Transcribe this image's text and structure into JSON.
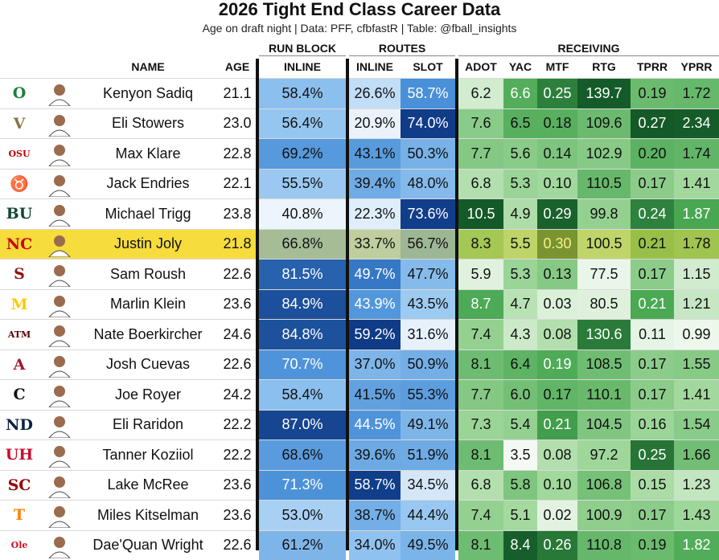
{
  "title": "2026 Tight End Class Career Data",
  "subtitle": "Age on draft night | Data: PFF, cfbfastR | Table: @fball_insights",
  "group_headers": {
    "run_block": "RUN BLOCK",
    "routes": "ROUTES",
    "receiving": "RECEIVING"
  },
  "columns": {
    "name": "NAME",
    "age": "AGE",
    "inline_rb": "INLINE",
    "inline_rt": "INLINE",
    "slot": "SLOT",
    "adot": "ADOT",
    "yac": "YAC",
    "mtf": "MTF",
    "rtg": "RTG",
    "tprr": "TPRR",
    "yprr": "YPRR"
  },
  "chart_data": {
    "type": "table",
    "title": "2026 Tight End Class Career Data",
    "highlighted_row": "Justin Joly",
    "rows": [
      {
        "school": "Oregon",
        "logo_text": "O",
        "logo_color": "#1b7f3c",
        "name": "Kenyon Sadiq",
        "age": "21.1",
        "inline_rb": "58.4%",
        "inline_rt": "26.6%",
        "slot": "58.7%",
        "adot": "6.2",
        "yac": "6.6",
        "mtf": "0.25",
        "rtg": "139.7",
        "tprr": "0.19",
        "yprr": "1.72"
      },
      {
        "school": "Vanderbilt",
        "logo_text": "V",
        "logo_color": "#8b7448",
        "name": "Eli Stowers",
        "age": "23.0",
        "inline_rb": "56.4%",
        "inline_rt": "20.9%",
        "slot": "74.0%",
        "adot": "7.6",
        "yac": "6.5",
        "mtf": "0.18",
        "rtg": "109.6",
        "tprr": "0.27",
        "yprr": "2.34"
      },
      {
        "school": "Ohio State",
        "logo_text": "OSU",
        "logo_color": "#bb0000",
        "name": "Max Klare",
        "age": "22.8",
        "inline_rb": "69.2%",
        "inline_rt": "43.1%",
        "slot": "50.3%",
        "adot": "7.7",
        "yac": "5.6",
        "mtf": "0.14",
        "rtg": "102.9",
        "tprr": "0.20",
        "yprr": "1.74"
      },
      {
        "school": "Texas",
        "logo_text": "♉",
        "logo_color": "#bf5700",
        "name": "Jack Endries",
        "age": "22.1",
        "inline_rb": "55.5%",
        "inline_rt": "39.4%",
        "slot": "48.0%",
        "adot": "6.8",
        "yac": "5.3",
        "mtf": "0.10",
        "rtg": "110.5",
        "tprr": "0.17",
        "yprr": "1.41"
      },
      {
        "school": "Baylor",
        "logo_text": "BU",
        "logo_color": "#154734",
        "name": "Michael Trigg",
        "age": "23.8",
        "inline_rb": "40.8%",
        "inline_rt": "22.3%",
        "slot": "73.6%",
        "adot": "10.5",
        "yac": "4.9",
        "mtf": "0.29",
        "rtg": "99.8",
        "tprr": "0.24",
        "yprr": "1.87"
      },
      {
        "school": "NC State",
        "logo_text": "NC",
        "logo_color": "#cc0000",
        "name": "Justin Joly",
        "age": "21.8",
        "inline_rb": "66.8%",
        "inline_rt": "33.7%",
        "slot": "56.7%",
        "adot": "8.3",
        "yac": "5.5",
        "mtf": "0.30",
        "rtg": "100.5",
        "tprr": "0.21",
        "yprr": "1.78"
      },
      {
        "school": "Stanford",
        "logo_text": "S",
        "logo_color": "#8c1515",
        "name": "Sam Roush",
        "age": "22.6",
        "inline_rb": "81.5%",
        "inline_rt": "49.7%",
        "slot": "47.7%",
        "adot": "5.9",
        "yac": "5.3",
        "mtf": "0.13",
        "rtg": "77.5",
        "tprr": "0.17",
        "yprr": "1.15"
      },
      {
        "school": "Michigan",
        "logo_text": "M",
        "logo_color": "#ffcb05",
        "name": "Marlin Klein",
        "age": "23.6",
        "inline_rb": "84.9%",
        "inline_rt": "43.9%",
        "slot": "43.5%",
        "adot": "8.7",
        "yac": "4.7",
        "mtf": "0.03",
        "rtg": "80.5",
        "tprr": "0.21",
        "yprr": "1.21"
      },
      {
        "school": "Texas A&M",
        "logo_text": "ATM",
        "logo_color": "#500000",
        "name": "Nate Boerkircher",
        "age": "24.6",
        "inline_rb": "84.8%",
        "inline_rt": "59.2%",
        "slot": "31.6%",
        "adot": "7.4",
        "yac": "4.3",
        "mtf": "0.08",
        "rtg": "130.6",
        "tprr": "0.11",
        "yprr": "0.99"
      },
      {
        "school": "Alabama",
        "logo_text": "A",
        "logo_color": "#9e1b32",
        "name": "Josh Cuevas",
        "age": "22.6",
        "inline_rb": "70.7%",
        "inline_rt": "37.0%",
        "slot": "50.9%",
        "adot": "8.1",
        "yac": "6.4",
        "mtf": "0.19",
        "rtg": "108.5",
        "tprr": "0.17",
        "yprr": "1.55"
      },
      {
        "school": "Cincinnati",
        "logo_text": "C",
        "logo_color": "#111111",
        "name": "Joe Royer",
        "age": "24.2",
        "inline_rb": "58.4%",
        "inline_rt": "41.5%",
        "slot": "55.3%",
        "adot": "7.7",
        "yac": "6.0",
        "mtf": "0.17",
        "rtg": "110.1",
        "tprr": "0.17",
        "yprr": "1.41"
      },
      {
        "school": "Notre Dame",
        "logo_text": "ND",
        "logo_color": "#0c2340",
        "name": "Eli Raridon",
        "age": "22.2",
        "inline_rb": "87.0%",
        "inline_rt": "44.5%",
        "slot": "49.1%",
        "adot": "7.3",
        "yac": "5.4",
        "mtf": "0.21",
        "rtg": "104.5",
        "tprr": "0.16",
        "yprr": "1.54"
      },
      {
        "school": "Houston",
        "logo_text": "UH",
        "logo_color": "#c8102e",
        "name": "Tanner Koziiol",
        "age": "22.2",
        "inline_rb": "68.6%",
        "inline_rt": "39.6%",
        "slot": "51.9%",
        "adot": "8.1",
        "yac": "3.5",
        "mtf": "0.08",
        "rtg": "97.2",
        "tprr": "0.25",
        "yprr": "1.66"
      },
      {
        "school": "USC",
        "logo_text": "SC",
        "logo_color": "#990000",
        "name": "Lake McRee",
        "age": "23.6",
        "inline_rb": "71.3%",
        "inline_rt": "58.7%",
        "slot": "34.5%",
        "adot": "6.8",
        "yac": "5.8",
        "mtf": "0.10",
        "rtg": "106.8",
        "tprr": "0.15",
        "yprr": "1.23"
      },
      {
        "school": "Tennessee",
        "logo_text": "T",
        "logo_color": "#ff8200",
        "name": "Miles Kitselman",
        "age": "23.6",
        "inline_rb": "53.0%",
        "inline_rt": "38.7%",
        "slot": "44.4%",
        "adot": "7.4",
        "yac": "5.1",
        "mtf": "0.02",
        "rtg": "100.9",
        "tprr": "0.17",
        "yprr": "1.43"
      },
      {
        "school": "Ole Miss",
        "logo_text": "Ole",
        "logo_color": "#ce1126",
        "name": "Dae'Quan Wright",
        "age": "22.6",
        "inline_rb": "61.2%",
        "inline_rt": "34.0%",
        "slot": "49.5%",
        "adot": "8.1",
        "yac": "8.4",
        "mtf": "0.26",
        "rtg": "110.8",
        "tprr": "0.19",
        "yprr": "1.82"
      }
    ]
  }
}
